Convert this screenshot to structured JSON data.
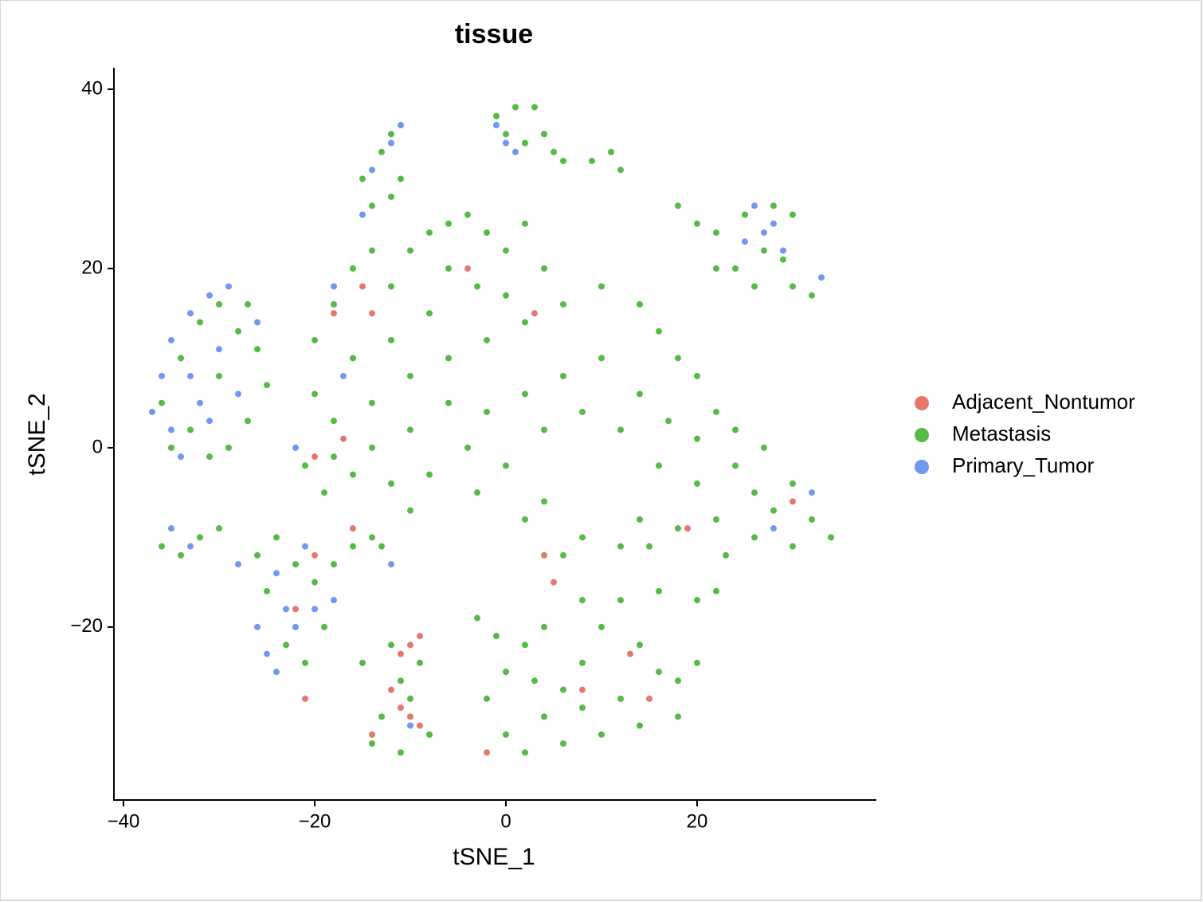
{
  "chart_data": {
    "type": "scatter",
    "title": "tissue",
    "x_label": "tSNE_1",
    "y_label": "tSNE_2",
    "xlim": [
      -41,
      38.75
    ],
    "ylim": [
      -39.3,
      42.4
    ],
    "xticks": [
      {
        "value": -40,
        "label": "−40"
      },
      {
        "value": -20,
        "label": "−20"
      },
      0,
      20
    ],
    "yticks": [
      {
        "value": -20,
        "label": "−20"
      },
      0,
      20,
      40
    ],
    "legend": "right",
    "grid": false,
    "series": [
      {
        "name": "Adjacent_Nontumor",
        "color": "#e5786d",
        "x": [
          -18,
          -14,
          -15,
          -4,
          3,
          -20,
          -17,
          -10,
          -9,
          -10,
          -11,
          -9,
          -12,
          -21,
          -22,
          -20,
          -16,
          5,
          8,
          13,
          15,
          -2,
          30,
          19,
          -14,
          4,
          -11
        ],
        "values": [
          15,
          15,
          18,
          20,
          15,
          -1,
          1,
          -22,
          -21,
          -30,
          -29,
          -31,
          -27,
          -28,
          -18,
          -12,
          -9,
          -15,
          -27,
          -23,
          -28,
          -34,
          -6,
          -9,
          -32,
          -12,
          -23
        ]
      },
      {
        "name": "Metastasis",
        "color": "#57b947",
        "x": [
          -20,
          -18,
          -16,
          -14,
          -12,
          -10,
          -8,
          -6,
          -4,
          -2,
          0,
          2,
          4,
          -6,
          -3,
          0,
          -8,
          -12,
          -16,
          -20,
          -18,
          -14,
          -10,
          -6,
          -2,
          2,
          6,
          10,
          14,
          16,
          18,
          20,
          22,
          20,
          17,
          14,
          10,
          6,
          2,
          -2,
          -6,
          -10,
          -14,
          -18,
          -21,
          -19,
          -16,
          -12,
          4,
          8,
          12,
          16,
          20,
          24,
          26,
          28,
          30,
          32,
          34,
          30,
          26,
          22,
          18,
          14,
          12,
          8,
          4,
          0,
          -4,
          2,
          6,
          -3,
          -8,
          -10,
          24,
          27,
          23,
          15,
          18,
          20,
          22,
          25,
          28,
          30,
          27,
          24,
          22,
          26,
          30,
          32,
          29,
          -15,
          -14,
          -13,
          -12,
          -11,
          -12,
          -1,
          1,
          3,
          4,
          2,
          5,
          6,
          0,
          9,
          11,
          12,
          -36,
          -34,
          -32,
          -30,
          -28,
          -26,
          -25,
          -27,
          -29,
          -31,
          -33,
          -35,
          -30,
          -27,
          -36,
          -34,
          -32,
          -30,
          -26,
          -24,
          -22,
          -20,
          -19,
          -21,
          -23,
          -25,
          -18,
          -16,
          -14,
          -13,
          -15,
          -12,
          -11,
          -14,
          -13,
          -10,
          -8,
          -11,
          -9,
          -2,
          0,
          2,
          0,
          2,
          4,
          6,
          8,
          10,
          12,
          14,
          16,
          18,
          20,
          18,
          14,
          10,
          6,
          4,
          8,
          16,
          20,
          22,
          -3,
          -1,
          12,
          8,
          3
        ],
        "values": [
          12,
          16,
          20,
          22,
          18,
          22,
          24,
          25,
          26,
          24,
          22,
          25,
          20,
          20,
          18,
          17,
          15,
          12,
          10,
          6,
          3,
          5,
          8,
          10,
          12,
          14,
          16,
          18,
          16,
          13,
          10,
          8,
          4,
          1,
          3,
          6,
          10,
          8,
          6,
          4,
          5,
          2,
          0,
          -1,
          -2,
          -5,
          -3,
          -4,
          2,
          4,
          2,
          -2,
          -4,
          -2,
          -5,
          -7,
          -4,
          -8,
          -10,
          -11,
          -10,
          -8,
          -9,
          -8,
          -11,
          -10,
          -6,
          -2,
          0,
          -8,
          -12,
          -5,
          -3,
          -7,
          2,
          0,
          -12,
          -11,
          27,
          25,
          24,
          26,
          27,
          26,
          22,
          20,
          20,
          18,
          18,
          17,
          21,
          30,
          27,
          33,
          35,
          30,
          28,
          37,
          38,
          38,
          35,
          34,
          33,
          32,
          35,
          32,
          33,
          31,
          5,
          10,
          14,
          16,
          13,
          11,
          7,
          3,
          0,
          -1,
          2,
          0,
          8,
          16,
          -11,
          -12,
          -10,
          -9,
          -12,
          -10,
          -13,
          -15,
          -20,
          -24,
          -22,
          -16,
          -13,
          -11,
          -10,
          -11,
          -24,
          -22,
          -26,
          -33,
          -30,
          -28,
          -32,
          -34,
          -24,
          -28,
          -25,
          -22,
          -32,
          -34,
          -30,
          -27,
          -24,
          -20,
          -17,
          -22,
          -25,
          -26,
          -24,
          -30,
          -31,
          -32,
          -33,
          -20,
          -17,
          -16,
          -17,
          -16,
          -19,
          -21,
          -28,
          -29,
          -26
        ]
      },
      {
        "name": "Primary_Tumor",
        "color": "#7198ee",
        "x": [
          -37,
          -36,
          -35,
          -33,
          -31,
          -29,
          -35,
          -34,
          -32,
          -30,
          -28,
          -26,
          -33,
          -31,
          -14,
          -12,
          -11,
          -15,
          -1,
          0,
          1,
          26,
          28,
          27,
          25,
          29,
          33,
          -28,
          -26,
          -25,
          -24,
          -22,
          -20,
          -24,
          -21,
          -18,
          -23,
          -18,
          -17,
          -22,
          28,
          32,
          -12,
          -10,
          -35,
          -33
        ],
        "values": [
          4,
          8,
          12,
          15,
          17,
          18,
          2,
          -1,
          5,
          11,
          6,
          14,
          8,
          3,
          31,
          34,
          36,
          26,
          36,
          34,
          33,
          27,
          25,
          24,
          23,
          22,
          19,
          -13,
          -20,
          -23,
          -25,
          -20,
          -18,
          -14,
          -11,
          -17,
          -18,
          18,
          8,
          0,
          -9,
          -5,
          -13,
          -31,
          -9,
          -11
        ]
      }
    ]
  }
}
